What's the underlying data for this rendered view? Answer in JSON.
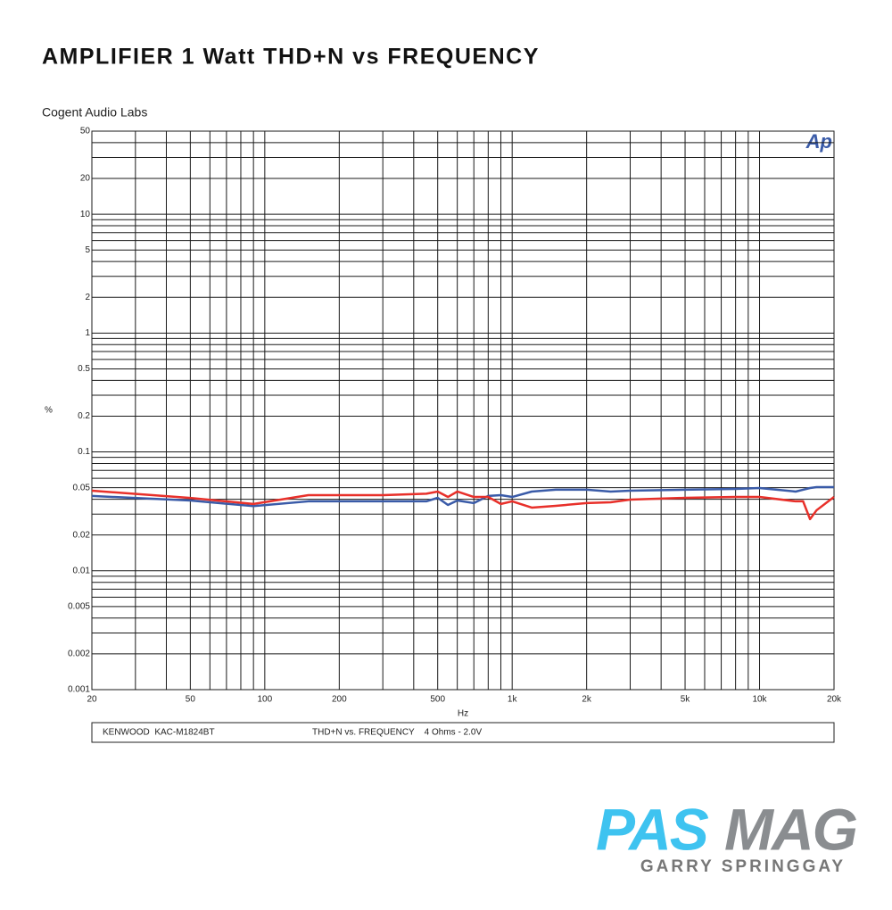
{
  "chart_data": {
    "type": "line",
    "title": "AMPLIFIER 1 Watt THD+N vs FREQUENCY",
    "subtitle": "Cogent Audio Labs",
    "y_label": "%",
    "x_label": "Hz",
    "watermark": "Ap",
    "notes": [
      "KENWOOD  KAC-M1824BT",
      "THD+N vs. FREQUENCY    4 Ohms - 2.0V"
    ],
    "log_x": true,
    "log_y": true,
    "grid": true,
    "xlim": [
      20,
      20000
    ],
    "ylim": [
      0.001,
      50
    ],
    "xticks": [
      20,
      50,
      100,
      200,
      500,
      {
        "value": 1000,
        "label": "1k"
      },
      {
        "value": 2000,
        "label": "2k"
      },
      {
        "value": 5000,
        "label": "5k"
      },
      {
        "value": 10000,
        "label": "10k"
      },
      {
        "value": 20000,
        "label": "20k"
      }
    ],
    "xminor": [
      30,
      40,
      60,
      70,
      80,
      90,
      300,
      400,
      600,
      700,
      800,
      900,
      3000,
      4000,
      6000,
      7000,
      8000,
      9000
    ],
    "yticks": [
      0.001,
      0.002,
      0.005,
      0.01,
      0.02,
      0.05,
      0.1,
      0.2,
      0.5,
      1,
      2,
      5,
      10,
      20,
      50
    ],
    "yminor": [
      0.003,
      0.004,
      0.006,
      0.007,
      0.008,
      0.009,
      0.03,
      0.04,
      0.06,
      0.07,
      0.08,
      0.09,
      0.3,
      0.4,
      0.6,
      0.7,
      0.8,
      0.9,
      3,
      4,
      6,
      7,
      8,
      9,
      30,
      40
    ],
    "x": [
      20,
      50,
      90,
      150,
      300,
      450,
      500,
      550,
      600,
      700,
      800,
      900,
      1000,
      1200,
      1500,
      2000,
      2500,
      3000,
      5000,
      8000,
      10000,
      14000,
      15000,
      16000,
      17000,
      20000
    ],
    "series": [
      {
        "color": "#3a5ba8",
        "values": [
          0.0426,
          0.039,
          0.035,
          0.0384,
          0.0384,
          0.0384,
          0.0411,
          0.0358,
          0.039,
          0.0371,
          0.0426,
          0.0433,
          0.0418,
          0.0464,
          0.0481,
          0.0481,
          0.0464,
          0.0472,
          0.0481,
          0.0489,
          0.0497,
          0.0464,
          0.0481,
          0.0497,
          0.0506,
          0.0506
        ]
      },
      {
        "color": "#e8302a",
        "values": [
          0.0472,
          0.041,
          0.0365,
          0.0433,
          0.0433,
          0.0445,
          0.0464,
          0.0418,
          0.0464,
          0.0418,
          0.0418,
          0.0365,
          0.0384,
          0.034,
          0.0352,
          0.0371,
          0.0377,
          0.0397,
          0.0411,
          0.0418,
          0.0418,
          0.0384,
          0.0384,
          0.0272,
          0.0323,
          0.0418
        ]
      }
    ]
  },
  "branding": {
    "logo": [
      "PAS",
      "MAG"
    ],
    "author": "GARRY SPRINGGAY"
  }
}
